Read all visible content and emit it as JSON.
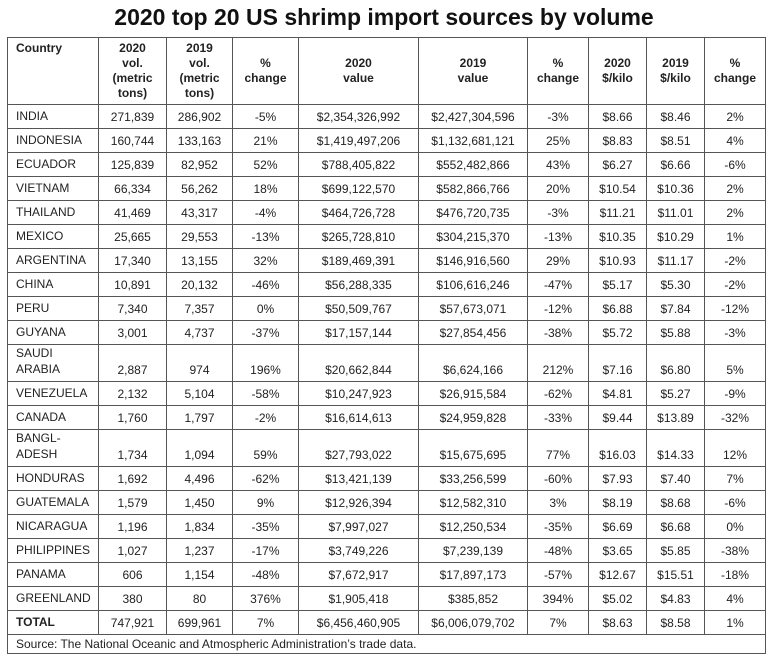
{
  "title": "2020 top 20 US shrimp import sources by volume",
  "columns": [
    {
      "lines": [
        "Country"
      ]
    },
    {
      "lines": [
        "2020",
        "vol.",
        "(metric",
        "tons)"
      ]
    },
    {
      "lines": [
        "2019",
        "vol.",
        "(metric",
        "tons)"
      ]
    },
    {
      "lines": [
        "%",
        "change"
      ]
    },
    {
      "lines": [
        "2020",
        "value"
      ]
    },
    {
      "lines": [
        "2019",
        "value"
      ]
    },
    {
      "lines": [
        "%",
        "change"
      ]
    },
    {
      "lines": [
        "2020",
        "$/kilo"
      ]
    },
    {
      "lines": [
        "2019",
        "$/kilo"
      ]
    },
    {
      "lines": [
        "%",
        "change"
      ]
    }
  ],
  "rows": [
    [
      "INDIA",
      "271,839",
      "286,902",
      "-5%",
      "$2,354,326,992",
      "$2,427,304,596",
      "-3%",
      "$8.66",
      "$8.46",
      "2%"
    ],
    [
      "INDONESIA",
      "160,744",
      "133,163",
      "21%",
      "$1,419,497,206",
      "$1,132,681,121",
      "25%",
      "$8.83",
      "$8.51",
      "4%"
    ],
    [
      "ECUADOR",
      "125,839",
      "82,952",
      "52%",
      "$788,405,822",
      "$552,482,866",
      "43%",
      "$6.27",
      "$6.66",
      "-6%"
    ],
    [
      "VIETNAM",
      "66,334",
      "56,262",
      "18%",
      "$699,122,570",
      "$582,866,766",
      "20%",
      "$10.54",
      "$10.36",
      "2%"
    ],
    [
      "THAILAND",
      "41,469",
      "43,317",
      "-4%",
      "$464,726,728",
      "$476,720,735",
      "-3%",
      "$11.21",
      "$11.01",
      "2%"
    ],
    [
      "MEXICO",
      "25,665",
      "29,553",
      "-13%",
      "$265,728,810",
      "$304,215,370",
      "-13%",
      "$10.35",
      "$10.29",
      "1%"
    ],
    [
      "ARGENTINA",
      "17,340",
      "13,155",
      "32%",
      "$189,469,391",
      "$146,916,560",
      "29%",
      "$10.93",
      "$11.17",
      "-2%"
    ],
    [
      "CHINA",
      "10,891",
      "20,132",
      "-46%",
      "$56,288,335",
      "$106,616,246",
      "-47%",
      "$5.17",
      "$5.30",
      "-2%"
    ],
    [
      "PERU",
      "7,340",
      "7,357",
      "0%",
      "$50,509,767",
      "$57,673,071",
      "-12%",
      "$6.88",
      "$7.84",
      "-12%"
    ],
    [
      "GUYANA",
      "3,001",
      "4,737",
      "-37%",
      "$17,157,144",
      "$27,854,456",
      "-38%",
      "$5.72",
      "$5.88",
      "-3%"
    ],
    [
      "SAUDI ARABIA",
      "2,887",
      "974",
      "196%",
      "$20,662,844",
      "$6,624,166",
      "212%",
      "$7.16",
      "$6.80",
      "5%"
    ],
    [
      "VENEZUELA",
      "2,132",
      "5,104",
      "-58%",
      "$10,247,923",
      "$26,915,584",
      "-62%",
      "$4.81",
      "$5.27",
      "-9%"
    ],
    [
      "CANADA",
      "1,760",
      "1,797",
      "-2%",
      "$16,614,613",
      "$24,959,828",
      "-33%",
      "$9.44",
      "$13.89",
      "-32%"
    ],
    [
      "BANGL- ADESH",
      "1,734",
      "1,094",
      "59%",
      "$27,793,022",
      "$15,675,695",
      "77%",
      "$16.03",
      "$14.33",
      "12%"
    ],
    [
      "HONDURAS",
      "1,692",
      "4,496",
      "-62%",
      "$13,421,139",
      "$33,256,599",
      "-60%",
      "$7.93",
      "$7.40",
      "7%"
    ],
    [
      "GUATEMALA",
      "1,579",
      "1,450",
      "9%",
      "$12,926,394",
      "$12,582,310",
      "3%",
      "$8.19",
      "$8.68",
      "-6%"
    ],
    [
      "NICARAGUA",
      "1,196",
      "1,834",
      "-35%",
      "$7,997,027",
      "$12,250,534",
      "-35%",
      "$6.69",
      "$6.68",
      "0%"
    ],
    [
      "PHILIPPINES",
      "1,027",
      "1,237",
      "-17%",
      "$3,749,226",
      "$7,239,139",
      "-48%",
      "$3.65",
      "$5.85",
      "-38%"
    ],
    [
      "PANAMA",
      "606",
      "1,154",
      "-48%",
      "$7,672,917",
      "$17,897,173",
      "-57%",
      "$12.67",
      "$15.51",
      "-18%"
    ],
    [
      "GREENLAND",
      "380",
      "80",
      "376%",
      "$1,905,418",
      "$385,852",
      "394%",
      "$5.02",
      "$4.83",
      "4%"
    ]
  ],
  "total": [
    "TOTAL",
    "747,921",
    "699,961",
    "7%",
    "$6,456,460,905",
    "$6,006,079,702",
    "7%",
    "$8.63",
    "$8.58",
    "1%"
  ],
  "source": "Source: The National Oceanic and Atmospheric Administration’s trade data."
}
